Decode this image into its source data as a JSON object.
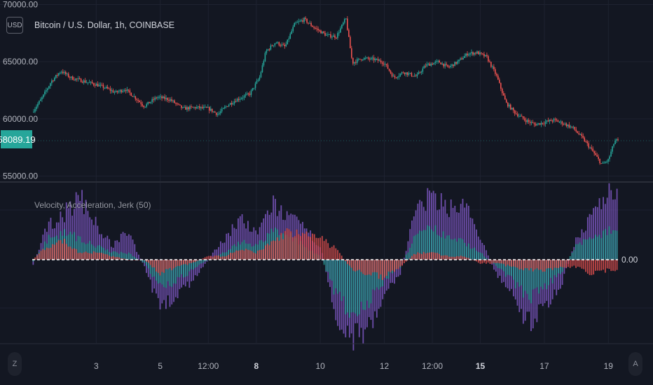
{
  "header": {
    "symbol_title": "Bitcoin / U.S. Dollar, 1h, COINBASE",
    "currency_button": "USD",
    "last_price": "58089.19"
  },
  "indicator": {
    "title": "Velocity, Acceleration, Jerk (50)",
    "zero_label": "0.00"
  },
  "footer": {
    "left_button": "Z",
    "right_button": "A"
  },
  "colors": {
    "background": "#131722",
    "grid": "#1e2230",
    "up_candle": "#26a69a",
    "down_candle": "#ef5350",
    "velocity": "#7e57c2",
    "acceleration": "#26a69a",
    "jerk": "#ef5350",
    "zero_line": "#ffffff",
    "price_badge": "#26a69a"
  },
  "chart_data": [
    {
      "type": "candlestick",
      "title": "Bitcoin / U.S. Dollar, 1h, COINBASE",
      "y_ticks": [
        "70000.00",
        "65000.00",
        "60000.00",
        "55000.00"
      ],
      "y_tick_values": [
        70000,
        65000,
        60000,
        55000
      ],
      "ylim": [
        54600,
        70400
      ],
      "x_ticks": [
        "3",
        "5",
        "12:00",
        "8",
        "10",
        "12",
        "12:00",
        "15",
        "17",
        "19"
      ],
      "x_tick_bold": [
        false,
        false,
        false,
        true,
        false,
        false,
        false,
        true,
        false,
        false
      ],
      "x_tick_positions": [
        3,
        5,
        6.5,
        8,
        10,
        12,
        13.5,
        15,
        17,
        19
      ],
      "xlim": [
        1.0,
        19.3
      ],
      "grid": true,
      "last_price": 58089.19,
      "price_path": [
        [
          1.0,
          60600
        ],
        [
          1.3,
          61800
        ],
        [
          1.6,
          63300
        ],
        [
          1.9,
          64200
        ],
        [
          2.2,
          63600
        ],
        [
          2.6,
          63300
        ],
        [
          3.0,
          63000
        ],
        [
          3.3,
          62700
        ],
        [
          3.6,
          62300
        ],
        [
          3.9,
          62600
        ],
        [
          4.2,
          61900
        ],
        [
          4.5,
          61100
        ],
        [
          4.9,
          61900
        ],
        [
          5.3,
          61700
        ],
        [
          5.7,
          60900
        ],
        [
          6.1,
          61000
        ],
        [
          6.5,
          60900
        ],
        [
          6.8,
          60400
        ],
        [
          7.1,
          61200
        ],
        [
          7.4,
          61700
        ],
        [
          7.8,
          62200
        ],
        [
          8.1,
          63600
        ],
        [
          8.3,
          65900
        ],
        [
          8.6,
          66700
        ],
        [
          8.9,
          66300
        ],
        [
          9.2,
          68300
        ],
        [
          9.5,
          68700
        ],
        [
          9.8,
          68000
        ],
        [
          10.2,
          67300
        ],
        [
          10.5,
          67200
        ],
        [
          10.8,
          68800
        ],
        [
          11.0,
          64900
        ],
        [
          11.3,
          65300
        ],
        [
          11.7,
          65200
        ],
        [
          12.0,
          64900
        ],
        [
          12.3,
          63600
        ],
        [
          12.6,
          64100
        ],
        [
          13.0,
          63700
        ],
        [
          13.3,
          64700
        ],
        [
          13.7,
          65000
        ],
        [
          14.0,
          64500
        ],
        [
          14.3,
          65000
        ],
        [
          14.6,
          65700
        ],
        [
          14.9,
          65800
        ],
        [
          15.2,
          65400
        ],
        [
          15.5,
          63800
        ],
        [
          15.8,
          61400
        ],
        [
          16.1,
          60500
        ],
        [
          16.4,
          59900
        ],
        [
          16.7,
          59500
        ],
        [
          17.0,
          59700
        ],
        [
          17.3,
          59900
        ],
        [
          17.6,
          59600
        ],
        [
          17.9,
          59200
        ],
        [
          18.2,
          58300
        ],
        [
          18.5,
          57200
        ],
        [
          18.8,
          56000
        ],
        [
          19.0,
          56400
        ],
        [
          19.2,
          58089
        ]
      ]
    },
    {
      "type": "bar",
      "title": "Velocity, Acceleration, Jerk (50)",
      "zero_label": "0.00",
      "ylim": [
        -1.3,
        1.1
      ],
      "series": [
        {
          "name": "Velocity",
          "values": [
            [
              1.0,
              -0.1
            ],
            [
              1.5,
              0.5
            ],
            [
              2.0,
              0.65
            ],
            [
              2.5,
              0.9
            ],
            [
              3.0,
              0.5
            ],
            [
              3.5,
              0.2
            ],
            [
              4.0,
              0.4
            ],
            [
              4.5,
              -0.1
            ],
            [
              5.0,
              -0.7
            ],
            [
              5.5,
              -0.5
            ],
            [
              6.0,
              -0.3
            ],
            [
              6.5,
              0.0
            ],
            [
              7.0,
              0.3
            ],
            [
              7.5,
              0.6
            ],
            [
              8.0,
              0.35
            ],
            [
              8.5,
              0.8
            ],
            [
              9.0,
              0.6
            ],
            [
              9.5,
              0.45
            ],
            [
              10.0,
              0.2
            ],
            [
              10.5,
              -0.8
            ],
            [
              11.0,
              -1.1
            ],
            [
              11.5,
              -1.0
            ],
            [
              12.0,
              -0.5
            ],
            [
              12.5,
              -0.2
            ],
            [
              13.0,
              0.75
            ],
            [
              13.5,
              0.9
            ],
            [
              14.0,
              0.75
            ],
            [
              14.5,
              0.8
            ],
            [
              15.0,
              0.3
            ],
            [
              15.5,
              -0.2
            ],
            [
              16.0,
              -0.5
            ],
            [
              16.5,
              -0.9
            ],
            [
              17.0,
              -0.7
            ],
            [
              17.5,
              -0.4
            ],
            [
              18.0,
              0.3
            ],
            [
              18.5,
              0.6
            ],
            [
              19.0,
              1.0
            ]
          ]
        },
        {
          "name": "Acceleration",
          "values": [
            [
              1.0,
              -0.05
            ],
            [
              1.5,
              0.3
            ],
            [
              2.0,
              0.4
            ],
            [
              2.5,
              0.3
            ],
            [
              3.0,
              0.2
            ],
            [
              3.5,
              0.1
            ],
            [
              4.0,
              0.1
            ],
            [
              4.5,
              -0.05
            ],
            [
              5.0,
              -0.4
            ],
            [
              5.5,
              -0.3
            ],
            [
              6.0,
              -0.15
            ],
            [
              6.5,
              0.0
            ],
            [
              7.0,
              0.1
            ],
            [
              7.5,
              0.25
            ],
            [
              8.0,
              0.2
            ],
            [
              8.5,
              0.4
            ],
            [
              9.0,
              0.35
            ],
            [
              9.5,
              0.2
            ],
            [
              10.0,
              0.05
            ],
            [
              10.5,
              -0.5
            ],
            [
              11.0,
              -0.8
            ],
            [
              11.5,
              -0.6
            ],
            [
              12.0,
              -0.3
            ],
            [
              12.5,
              -0.1
            ],
            [
              13.0,
              0.35
            ],
            [
              13.5,
              0.45
            ],
            [
              14.0,
              0.3
            ],
            [
              14.5,
              0.25
            ],
            [
              15.0,
              0.1
            ],
            [
              15.5,
              -0.1
            ],
            [
              16.0,
              -0.3
            ],
            [
              16.5,
              -0.55
            ],
            [
              17.0,
              -0.4
            ],
            [
              17.5,
              -0.2
            ],
            [
              18.0,
              0.2
            ],
            [
              18.5,
              0.35
            ],
            [
              19.0,
              0.4
            ]
          ]
        },
        {
          "name": "Jerk",
          "values": [
            [
              1.0,
              0.0
            ],
            [
              1.5,
              0.2
            ],
            [
              2.0,
              0.25
            ],
            [
              2.5,
              0.1
            ],
            [
              3.0,
              0.1
            ],
            [
              3.5,
              0.05
            ],
            [
              4.0,
              0.0
            ],
            [
              4.5,
              0.0
            ],
            [
              5.0,
              -0.2
            ],
            [
              5.5,
              -0.1
            ],
            [
              6.0,
              -0.05
            ],
            [
              6.5,
              0.05
            ],
            [
              7.0,
              0.05
            ],
            [
              7.5,
              0.15
            ],
            [
              8.0,
              0.1
            ],
            [
              8.5,
              0.25
            ],
            [
              9.0,
              0.4
            ],
            [
              9.5,
              0.35
            ],
            [
              10.0,
              0.3
            ],
            [
              10.5,
              0.15
            ],
            [
              11.0,
              -0.15
            ],
            [
              11.5,
              -0.2
            ],
            [
              12.0,
              -0.25
            ],
            [
              12.5,
              -0.1
            ],
            [
              13.0,
              0.1
            ],
            [
              13.5,
              0.1
            ],
            [
              14.0,
              0.05
            ],
            [
              14.5,
              0.05
            ],
            [
              15.0,
              -0.05
            ],
            [
              15.5,
              -0.05
            ],
            [
              16.0,
              -0.1
            ],
            [
              16.5,
              -0.15
            ],
            [
              17.0,
              -0.15
            ],
            [
              17.5,
              -0.1
            ],
            [
              18.0,
              -0.1
            ],
            [
              18.5,
              -0.2
            ],
            [
              19.0,
              -0.15
            ]
          ]
        }
      ]
    }
  ]
}
